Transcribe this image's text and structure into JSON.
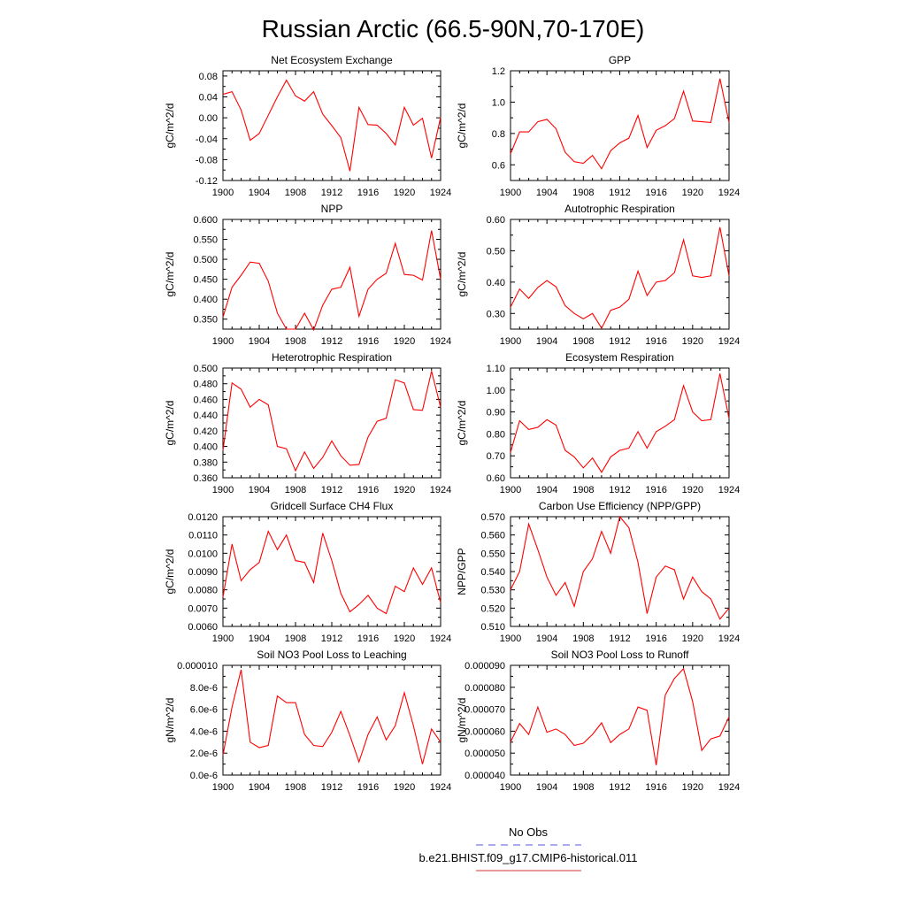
{
  "title": "Russian Arctic (66.5-90N,70-170E)",
  "legend": {
    "items": [
      {
        "label": "No Obs",
        "color": "#5555dd",
        "style": "dashed"
      },
      {
        "label": "b.e21.BHIST.f09_g17.CMIP6-historical.011",
        "color": "#dd3333",
        "style": "solid"
      }
    ]
  },
  "series_color": "#ff0000",
  "chart_data": [
    {
      "type": "line",
      "title": "Net Ecosystem Exchange",
      "ylabel": "gC/m^2/d",
      "x": [
        1900,
        1901,
        1902,
        1903,
        1904,
        1905,
        1906,
        1907,
        1908,
        1909,
        1910,
        1911,
        1912,
        1913,
        1914,
        1915,
        1916,
        1917,
        1918,
        1919,
        1920,
        1921,
        1922,
        1923,
        1924
      ],
      "values": [
        0.045,
        0.05,
        0.015,
        -0.043,
        -0.03,
        0.005,
        0.04,
        0.072,
        0.042,
        0.032,
        0.05,
        0.007,
        -0.015,
        -0.038,
        -0.102,
        0.02,
        -0.013,
        -0.014,
        -0.03,
        -0.052,
        0.02,
        -0.014,
        -0.001,
        -0.077,
        0.001
      ],
      "ylim": [
        -0.12,
        0.09
      ],
      "yticks": [
        "0.08",
        "0.04",
        "0.00",
        "-0.04",
        "-0.08",
        "-0.12"
      ],
      "yticks_values": [
        0.08,
        0.04,
        0.0,
        -0.04,
        -0.08,
        -0.12
      ],
      "xticks": [
        "1900",
        "1904",
        "1908",
        "1912",
        "1916",
        "1920",
        "1924"
      ]
    },
    {
      "type": "line",
      "title": "GPP",
      "ylabel": "gC/m^2/d",
      "x": [
        1900,
        1901,
        1902,
        1903,
        1904,
        1905,
        1906,
        1907,
        1908,
        1909,
        1910,
        1911,
        1912,
        1913,
        1914,
        1915,
        1916,
        1917,
        1918,
        1919,
        1920,
        1921,
        1922,
        1923,
        1924
      ],
      "values": [
        0.67,
        0.81,
        0.81,
        0.875,
        0.89,
        0.83,
        0.68,
        0.62,
        0.61,
        0.66,
        0.575,
        0.69,
        0.74,
        0.77,
        0.915,
        0.71,
        0.82,
        0.85,
        0.895,
        1.07,
        0.88,
        0.875,
        0.87,
        1.15,
        0.87
      ],
      "ylim": [
        0.5,
        1.2
      ],
      "yticks": [
        "1.2",
        "1.0",
        "0.8",
        "0.6"
      ],
      "yticks_values": [
        1.2,
        1.0,
        0.8,
        0.6
      ],
      "xticks": [
        "1900",
        "1904",
        "1908",
        "1912",
        "1916",
        "1920",
        "1924"
      ]
    },
    {
      "type": "line",
      "title": "NPP",
      "ylabel": "gC/m^2/d",
      "x": [
        1900,
        1901,
        1902,
        1903,
        1904,
        1905,
        1906,
        1907,
        1908,
        1909,
        1910,
        1911,
        1912,
        1913,
        1914,
        1915,
        1916,
        1917,
        1918,
        1919,
        1920,
        1921,
        1922,
        1923,
        1924
      ],
      "values": [
        0.355,
        0.43,
        0.46,
        0.493,
        0.49,
        0.445,
        0.365,
        0.325,
        0.325,
        0.365,
        0.323,
        0.385,
        0.425,
        0.43,
        0.48,
        0.357,
        0.425,
        0.45,
        0.465,
        0.54,
        0.462,
        0.46,
        0.448,
        0.572,
        0.45
      ],
      "ylim": [
        0.325,
        0.6
      ],
      "yticks": [
        "0.600",
        "0.550",
        "0.500",
        "0.450",
        "0.400",
        "0.350"
      ],
      "yticks_values": [
        0.6,
        0.55,
        0.5,
        0.45,
        0.4,
        0.35
      ],
      "xticks": [
        "1900",
        "1904",
        "1908",
        "1912",
        "1916",
        "1920",
        "1924"
      ]
    },
    {
      "type": "line",
      "title": "Autotrophic Respiration",
      "ylabel": "gC/m^2/d",
      "x": [
        1900,
        1901,
        1902,
        1903,
        1904,
        1905,
        1906,
        1907,
        1908,
        1909,
        1910,
        1911,
        1912,
        1913,
        1914,
        1915,
        1916,
        1917,
        1918,
        1919,
        1920,
        1921,
        1922,
        1923,
        1924
      ],
      "values": [
        0.32,
        0.378,
        0.348,
        0.383,
        0.405,
        0.385,
        0.325,
        0.3,
        0.283,
        0.3,
        0.253,
        0.31,
        0.32,
        0.345,
        0.435,
        0.357,
        0.4,
        0.405,
        0.43,
        0.535,
        0.42,
        0.415,
        0.42,
        0.575,
        0.42
      ],
      "ylim": [
        0.25,
        0.6
      ],
      "yticks": [
        "0.60",
        "0.50",
        "0.40",
        "0.30"
      ],
      "yticks_values": [
        0.6,
        0.5,
        0.4,
        0.3
      ],
      "xticks": [
        "1900",
        "1904",
        "1908",
        "1912",
        "1916",
        "1920",
        "1924"
      ]
    },
    {
      "type": "line",
      "title": "Heterotrophic Respiration",
      "ylabel": "gC/m^2/d",
      "x": [
        1900,
        1901,
        1902,
        1903,
        1904,
        1905,
        1906,
        1907,
        1908,
        1909,
        1910,
        1911,
        1912,
        1913,
        1914,
        1915,
        1916,
        1917,
        1918,
        1919,
        1920,
        1921,
        1922,
        1923,
        1924
      ],
      "values": [
        0.395,
        0.481,
        0.473,
        0.45,
        0.46,
        0.453,
        0.4,
        0.397,
        0.369,
        0.393,
        0.372,
        0.386,
        0.407,
        0.388,
        0.376,
        0.377,
        0.412,
        0.432,
        0.436,
        0.485,
        0.481,
        0.447,
        0.446,
        0.496,
        0.45
      ],
      "ylim": [
        0.36,
        0.5
      ],
      "yticks": [
        "0.500",
        "0.480",
        "0.460",
        "0.440",
        "0.420",
        "0.400",
        "0.380",
        "0.360"
      ],
      "yticks_values": [
        0.5,
        0.48,
        0.46,
        0.44,
        0.42,
        0.4,
        0.38,
        0.36
      ],
      "xticks": [
        "1900",
        "1904",
        "1908",
        "1912",
        "1916",
        "1920",
        "1924"
      ]
    },
    {
      "type": "line",
      "title": "Ecosystem Respiration",
      "ylabel": "gC/m^2/d",
      "x": [
        1900,
        1901,
        1902,
        1903,
        1904,
        1905,
        1906,
        1907,
        1908,
        1909,
        1910,
        1911,
        1912,
        1913,
        1914,
        1915,
        1916,
        1917,
        1918,
        1919,
        1920,
        1921,
        1922,
        1923,
        1924
      ],
      "values": [
        0.715,
        0.86,
        0.82,
        0.83,
        0.865,
        0.84,
        0.725,
        0.695,
        0.645,
        0.69,
        0.625,
        0.695,
        0.725,
        0.735,
        0.81,
        0.735,
        0.81,
        0.835,
        0.865,
        1.02,
        0.9,
        0.86,
        0.865,
        1.075,
        0.87
      ],
      "ylim": [
        0.6,
        1.1
      ],
      "yticks": [
        "1.10",
        "1.00",
        "0.90",
        "0.80",
        "0.70",
        "0.60"
      ],
      "yticks_values": [
        1.1,
        1.0,
        0.9,
        0.8,
        0.7,
        0.6
      ],
      "xticks": [
        "1900",
        "1904",
        "1908",
        "1912",
        "1916",
        "1920",
        "1924"
      ]
    },
    {
      "type": "line",
      "title": "Gridcell Surface CH4 Flux",
      "ylabel": "gC/m^2/d",
      "x": [
        1900,
        1901,
        1902,
        1903,
        1904,
        1905,
        1906,
        1907,
        1908,
        1909,
        1910,
        1911,
        1912,
        1913,
        1914,
        1915,
        1916,
        1917,
        1918,
        1919,
        1920,
        1921,
        1922,
        1923,
        1924
      ],
      "values": [
        0.0076,
        0.0105,
        0.0085,
        0.0091,
        0.0095,
        0.0112,
        0.0102,
        0.011,
        0.0096,
        0.0095,
        0.0084,
        0.0111,
        0.0096,
        0.0078,
        0.0068,
        0.0072,
        0.0077,
        0.007,
        0.0067,
        0.0082,
        0.0079,
        0.0092,
        0.0083,
        0.0092,
        0.0073
      ],
      "ylim": [
        0.006,
        0.012
      ],
      "yticks": [
        "0.0120",
        "0.0110",
        "0.0100",
        "0.0090",
        "0.0080",
        "0.0070",
        "0.0060"
      ],
      "yticks_values": [
        0.012,
        0.011,
        0.01,
        0.009,
        0.008,
        0.007,
        0.006
      ],
      "xticks": [
        "1900",
        "1904",
        "1908",
        "1912",
        "1916",
        "1920",
        "1924"
      ]
    },
    {
      "type": "line",
      "title": "Carbon Use Efficiency (NPP/GPP)",
      "ylabel": "NPP/GPP",
      "x": [
        1900,
        1901,
        1902,
        1903,
        1904,
        1905,
        1906,
        1907,
        1908,
        1909,
        1910,
        1911,
        1912,
        1913,
        1914,
        1915,
        1916,
        1917,
        1918,
        1919,
        1920,
        1921,
        1922,
        1923,
        1924
      ],
      "values": [
        0.53,
        0.54,
        0.566,
        0.552,
        0.537,
        0.527,
        0.534,
        0.521,
        0.54,
        0.547,
        0.562,
        0.55,
        0.57,
        0.564,
        0.545,
        0.517,
        0.537,
        0.543,
        0.541,
        0.525,
        0.537,
        0.529,
        0.525,
        0.514,
        0.52
      ],
      "ylim": [
        0.51,
        0.57
      ],
      "yticks": [
        "0.570",
        "0.560",
        "0.550",
        "0.540",
        "0.530",
        "0.520",
        "0.510"
      ],
      "yticks_values": [
        0.57,
        0.56,
        0.55,
        0.54,
        0.53,
        0.52,
        0.51
      ],
      "xticks": [
        "1900",
        "1904",
        "1908",
        "1912",
        "1916",
        "1920",
        "1924"
      ]
    },
    {
      "type": "line",
      "title": "Soil NO3 Pool Loss to Leaching",
      "ylabel": "gN/m^2/d",
      "x": [
        1900,
        1901,
        1902,
        1903,
        1904,
        1905,
        1906,
        1907,
        1908,
        1909,
        1910,
        1911,
        1912,
        1913,
        1914,
        1915,
        1916,
        1917,
        1918,
        1919,
        1920,
        1921,
        1922,
        1923,
        1924
      ],
      "values": [
        1.8e-06,
        6.2e-06,
        9.6e-06,
        3e-06,
        2.5e-06,
        2.7e-06,
        7.2e-06,
        6.6e-06,
        6.6e-06,
        3.7e-06,
        2.7e-06,
        2.6e-06,
        3.9e-06,
        5.8e-06,
        3.6e-06,
        1.2e-06,
        3.7e-06,
        5.3e-06,
        3.2e-06,
        4.5e-06,
        7.5e-06,
        4.5e-06,
        1e-06,
        4.2e-06,
        3e-06
      ],
      "ylim": [
        0,
        1e-05
      ],
      "yticks": [
        "0.000010",
        "8.0e-6",
        "6.0e-6",
        "4.0e-6",
        "2.0e-6",
        "0.0e-6"
      ],
      "yticks_values": [
        1e-05,
        8e-06,
        6e-06,
        4e-06,
        2e-06,
        0.0
      ],
      "xticks": [
        "1900",
        "1904",
        "1908",
        "1912",
        "1916",
        "1920",
        "1924"
      ]
    },
    {
      "type": "line",
      "title": "Soil NO3 Pool Loss to Runoff",
      "ylabel": "gN/m^2/d",
      "x": [
        1900,
        1901,
        1902,
        1903,
        1904,
        1905,
        1906,
        1907,
        1908,
        1909,
        1910,
        1911,
        1912,
        1913,
        1914,
        1915,
        1916,
        1917,
        1918,
        1919,
        1920,
        1921,
        1922,
        1923,
        1924
      ],
      "values": [
        5.5e-05,
        6.35e-05,
        5.85e-05,
        7.1e-05,
        5.95e-05,
        6.1e-05,
        5.85e-05,
        5.35e-05,
        5.45e-05,
        5.85e-05,
        6.38e-05,
        5.48e-05,
        5.85e-05,
        6.1e-05,
        7.1e-05,
        6.95e-05,
        4.45e-05,
        7.65e-05,
        8.4e-05,
        8.85e-05,
        7.35e-05,
        5.12e-05,
        5.65e-05,
        5.78e-05,
        6.65e-05
      ],
      "ylim": [
        4e-05,
        9e-05
      ],
      "yticks": [
        "0.000090",
        "0.000080",
        "0.000070",
        "0.000060",
        "0.000050",
        "0.000040"
      ],
      "yticks_values": [
        9e-05,
        8e-05,
        7e-05,
        6e-05,
        5e-05,
        4e-05
      ],
      "xticks": [
        "1900",
        "1904",
        "1908",
        "1912",
        "1916",
        "1920",
        "1924"
      ]
    }
  ]
}
